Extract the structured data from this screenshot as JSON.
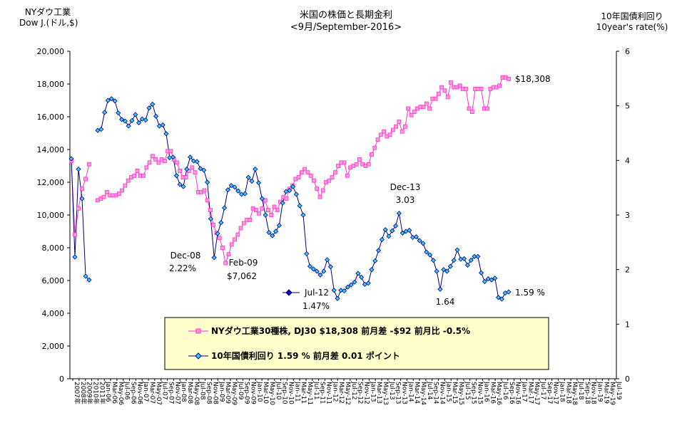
{
  "chart_data": {
    "type": "line",
    "title": "米国の株価と長期金利",
    "subtitle": "<9月/September-2016>",
    "y_left_label": [
      "NYダウ工業",
      "Dow J.(ドル,$)"
    ],
    "y_right_label": [
      "10年国債利回り",
      "10year's rate(%)"
    ],
    "y_left_lim": [
      0,
      20000
    ],
    "y_right_lim": [
      0,
      6
    ],
    "y_left_ticks": [
      "0",
      "2,000",
      "4,000",
      "6,000",
      "8,000",
      "10,000",
      "12,000",
      "14,000",
      "16,000",
      "18,000",
      "20,000"
    ],
    "y_right_ticks": [
      "0",
      "1",
      "2",
      "3",
      "4",
      "5",
      "6"
    ],
    "x_labels": [
      "2007年",
      "2008年",
      "2009年",
      "2010年",
      "2011年",
      "Jan-06",
      "Mar-06",
      "May-06",
      "Jul-06",
      "Sep-06",
      "Nov-06",
      "Jan-07",
      "Mar-07",
      "May-07",
      "Jul-07",
      "Sep-07",
      "Nov-07",
      "Jan-08",
      "Mar-08",
      "May-08",
      "Jul-08",
      "Sep-08",
      "Nov-08",
      "Jan-09",
      "Mar-09",
      "May-09",
      "Jul-09",
      "Sep-09",
      "Nov-09",
      "Jan-10",
      "Mar-10",
      "May-10",
      "Jul-10",
      "Sep-10",
      "Nov-10",
      "Jan-11",
      "Mar-11",
      "May-11",
      "Jul-11",
      "Sep-11",
      "Nov-11",
      "Jan-12",
      "Mar-12",
      "May-12",
      "Jul-12",
      "Sep-12",
      "Nov-12",
      "Jan-13",
      "Mar-13",
      "May-13",
      "Jul-13",
      "Sep-13",
      "Nov-13",
      "Jan-14",
      "Mar-14",
      "May-14",
      "Jul-14",
      "Sep-14",
      "Nov-14",
      "Jan-15",
      "Mar-15",
      "May-15",
      "Jul-15",
      "Sep-15",
      "Nov-15",
      "Jan-16",
      "Mar-16",
      "May-16",
      "Jul-16",
      "Sep-16",
      "Nov-16",
      "Jan-17",
      "Mar-17",
      "May-17",
      "Jul-17",
      "Sep-17",
      "Nov-17",
      "Jan-18",
      "Mar-18",
      "May-18",
      "Jul-18",
      "Sep-18",
      "Nov-18",
      "Jan-19",
      "Mar-19",
      "May-19",
      "Jul-19"
    ],
    "series": [
      {
        "name": "NYダウ工業30種株, DJ30 $18,308 前月差 -$92 前月比 -0.5%",
        "axis": "left",
        "color": "#ff33cc",
        "fill": "#ff99dd",
        "marker": "square",
        "segments": [
          [
            13300,
            8800,
            10400,
            11600,
            12200,
            13100
          ],
          [
            10900,
            11000,
            11100,
            11400,
            11200,
            11200,
            11200,
            11300,
            11500,
            11800,
            12100,
            12300,
            12400,
            12700,
            12400,
            12400,
            12900,
            13200,
            13600,
            13400,
            13200,
            13400,
            13300,
            13900,
            13900,
            13400,
            13200,
            12700,
            12300,
            12300,
            12700,
            12900,
            12600,
            11400,
            11400,
            11500,
            10900,
            10300,
            9400,
            8900,
            8600,
            8000,
            7062,
            7600,
            8200,
            8500,
            8800,
            9200,
            9500,
            9700,
            9700,
            10400,
            10300,
            10100,
            10400,
            10900,
            10300,
            10000,
            10500,
            10300,
            10800,
            11100,
            11000,
            11600,
            11800,
            12200,
            12300,
            12600,
            12800,
            12600,
            12400,
            12100,
            11600,
            11100,
            11500,
            12000,
            12100,
            12300,
            12600,
            13000,
            13200,
            13200,
            12400,
            12900,
            13000,
            13100,
            13400,
            13100,
            13000,
            13100,
            13700,
            14100,
            14600,
            14900,
            15100,
            14800,
            14900,
            15200,
            15400,
            15700,
            15100,
            15400,
            16500,
            16100,
            16300,
            16500,
            16600,
            16600,
            16800,
            16500,
            17100,
            17100,
            17400,
            17800,
            17600,
            17200,
            18100,
            17800,
            17800,
            17900,
            17700,
            17700,
            16500,
            16300,
            17700,
            17700,
            17700,
            16500,
            16500,
            17700,
            17800,
            17800,
            17900,
            18400,
            18400,
            18308
          ]
        ]
      },
      {
        "name": "10年国債利回り 1.59 % 前月差 0.01 ポイント",
        "axis": "right",
        "color": "#000080",
        "fill": "#33ccff",
        "marker": "diamond",
        "segments": [
          [
            4.03,
            2.23,
            3.84,
            3.3,
            1.88,
            1.81
          ],
          [
            4.55,
            4.57,
            4.88,
            5.1,
            5.13,
            5.09,
            4.87,
            4.75,
            4.72,
            4.63,
            4.73,
            4.84,
            4.69,
            4.76,
            4.74,
            4.96,
            5.03,
            4.81,
            4.63,
            4.65,
            4.49,
            4.05,
            4.06,
            3.72,
            3.56,
            3.52,
            3.84,
            4.06,
            3.99,
            3.98,
            3.85,
            3.82,
            3.6,
            2.93,
            2.22,
            2.66,
            2.86,
            3.13,
            3.46,
            3.54,
            3.51,
            3.44,
            3.38,
            3.39,
            3.69,
            3.62,
            3.84,
            3.59,
            3.3,
            3.0,
            2.68,
            2.62,
            2.7,
            2.81,
            3.22,
            3.43,
            3.45,
            3.52,
            3.38,
            3.17,
            3.0,
            2.29,
            2.06,
            2.01,
            1.97,
            1.9,
            1.97,
            2.18,
            2.05,
            1.62,
            1.47,
            1.62,
            1.61,
            1.68,
            1.72,
            1.77,
            1.93,
            1.86,
            1.73,
            1.75,
            2.0,
            2.16,
            2.35,
            2.55,
            2.73,
            2.61,
            2.71,
            2.8,
            3.03,
            2.67,
            2.7,
            2.72,
            2.59,
            2.6,
            2.53,
            2.48,
            2.32,
            2.27,
            2.17,
            1.97,
            1.64,
            2.0,
            1.97,
            2.06,
            2.17,
            2.36,
            2.19,
            2.2,
            2.08,
            2.17,
            2.24,
            2.24,
            1.94,
            1.78,
            1.83,
            1.81,
            1.84,
            1.49,
            1.46,
            1.57,
            1.59
          ]
        ]
      }
    ],
    "annotations": {
      "dec08": [
        "Dec-08",
        "2.22%"
      ],
      "feb09": [
        "Feb-09",
        "$7,062"
      ],
      "jul12": [
        "Jul-12",
        "1.47%"
      ],
      "dec13": [
        "Dec-13",
        "3.03"
      ],
      "min15": "1.64",
      "last_dow": "$18,308",
      "last_rate": "1.59 %"
    },
    "legend_position": "bottom-center",
    "grid": false
  }
}
